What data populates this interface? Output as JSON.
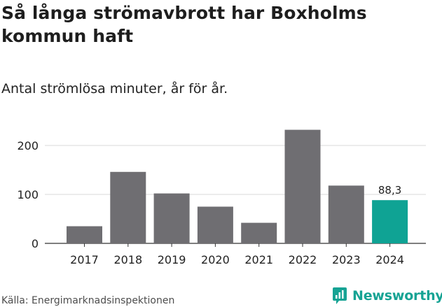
{
  "header": {
    "title": "Så långa strömavbrott har Boxholms kommun haft",
    "subtitle": "Antal strömlösa minuter, år för år."
  },
  "footer": {
    "source": "Källa: Energimarknadsinspektionen",
    "brand": "Newsworthy"
  },
  "colors": {
    "bar": "#6f6e72",
    "highlight": "#0fa394",
    "grid": "#d9d9d9",
    "text": "#222222",
    "brand": "#16a394"
  },
  "chart_data": {
    "type": "bar",
    "title": "Så långa strömavbrott har Boxholms kommun haft",
    "subtitle": "Antal strömlösa minuter, år för år.",
    "categories": [
      "2017",
      "2018",
      "2019",
      "2020",
      "2021",
      "2022",
      "2023",
      "2024"
    ],
    "values": [
      35,
      146,
      102,
      75,
      42,
      232,
      118,
      88.3
    ],
    "highlight_index": 7,
    "data_labels": [
      {
        "index": 7,
        "text": "88,3"
      }
    ],
    "yticks": [
      0,
      100,
      200
    ],
    "ylim": [
      0,
      240
    ],
    "grid": true,
    "legend": "none",
    "xlabel": "",
    "ylabel": ""
  }
}
